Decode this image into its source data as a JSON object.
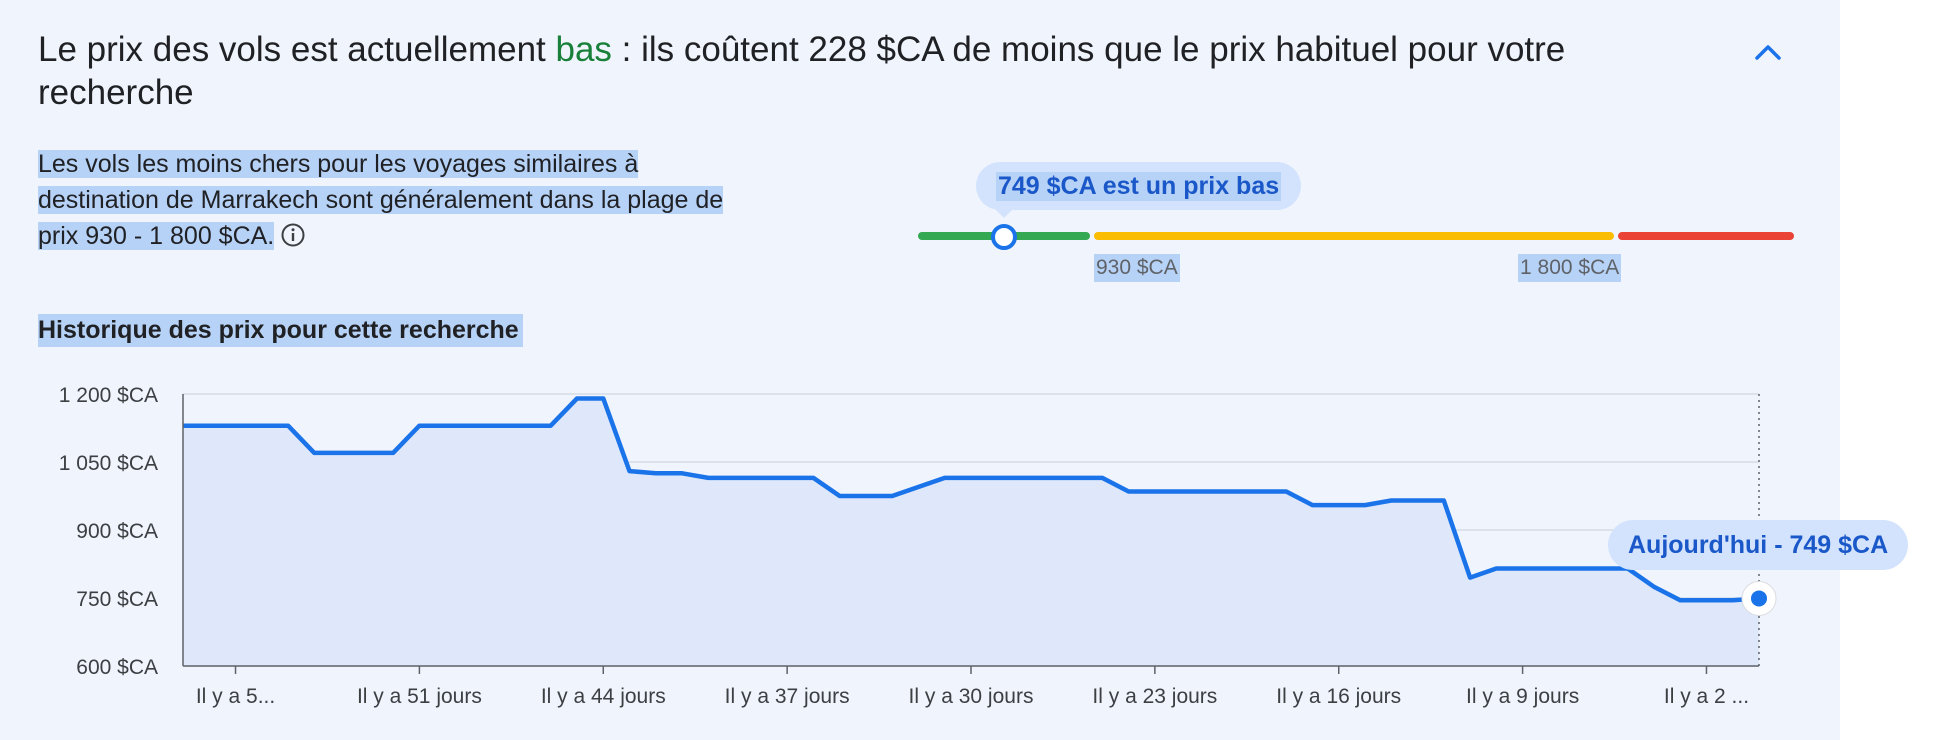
{
  "header": {
    "title_prefix": "Le prix des vols est actuellement ",
    "title_highlight": "bas",
    "title_suffix": " : ils coûtent 228 $CA de moins que le prix habituel pour votre recherche",
    "collapse_icon": "chevron-up-icon"
  },
  "description": {
    "text": "Les vols les moins chers pour les voyages similaires à destination de Marrakech sont généralement dans la plage de prix 930 - 1 800 $CA.",
    "info_icon": "info-icon"
  },
  "price_range": {
    "current_label": "749 $CA est un prix bas",
    "current_value": 749,
    "low_bound_label": "930 $CA",
    "high_bound_label": "1 800 $CA",
    "colors": {
      "low": "#34a853",
      "typical": "#fbbc04",
      "high": "#ea4335"
    }
  },
  "history": {
    "title": "Historique des prix pour cette recherche",
    "today_label": "Aujourd'hui - 749 $CA"
  },
  "colors": {
    "accent": "#1a73e8",
    "positive": "#188038",
    "fill": "#dfe8fb"
  },
  "chart_data": {
    "type": "area",
    "title": "Historique des prix pour cette recherche",
    "xlabel": "",
    "ylabel": "",
    "ylim": [
      600,
      1200
    ],
    "y_ticks": [
      "1 200 $CA",
      "1 050 $CA",
      "900 $CA",
      "750 $CA",
      "600 $CA"
    ],
    "y_tick_values": [
      1200,
      1050,
      900,
      750,
      600
    ],
    "x_tick_labels": [
      "Il y a 5...",
      "Il y a 51 jours",
      "Il y a 44 jours",
      "Il y a 37 jours",
      "Il y a 30 jours",
      "Il y a 23 jours",
      "Il y a 16 jours",
      "Il y a 9 jours",
      "Il y a 2 ..."
    ],
    "x_tick_days_ago": [
      58,
      51,
      44,
      37,
      30,
      23,
      16,
      9,
      2
    ],
    "x_range_days_ago": [
      60,
      0
    ],
    "series": [
      {
        "days_ago": [
          60,
          56,
          55,
          54,
          52,
          51,
          46,
          45,
          44,
          43,
          42,
          41,
          40,
          39,
          38,
          36,
          35,
          34,
          33,
          31,
          30,
          29,
          25,
          24,
          22,
          21,
          18,
          17,
          16,
          15,
          14,
          13,
          12,
          11,
          10,
          9,
          7,
          6,
          5,
          4,
          3,
          2,
          1,
          0
        ],
        "values": [
          1130,
          1130,
          1070,
          1070,
          1070,
          1130,
          1130,
          1190,
          1190,
          1030,
          1025,
          1025,
          1015,
          1015,
          1015,
          1015,
          975,
          975,
          975,
          1015,
          1015,
          1015,
          1015,
          985,
          985,
          985,
          985,
          955,
          955,
          955,
          965,
          965,
          965,
          795,
          815,
          815,
          815,
          815,
          815,
          775,
          745,
          745,
          745,
          749
        ]
      }
    ],
    "grid": true,
    "current_marker": {
      "days_ago": 0,
      "value": 749
    }
  }
}
